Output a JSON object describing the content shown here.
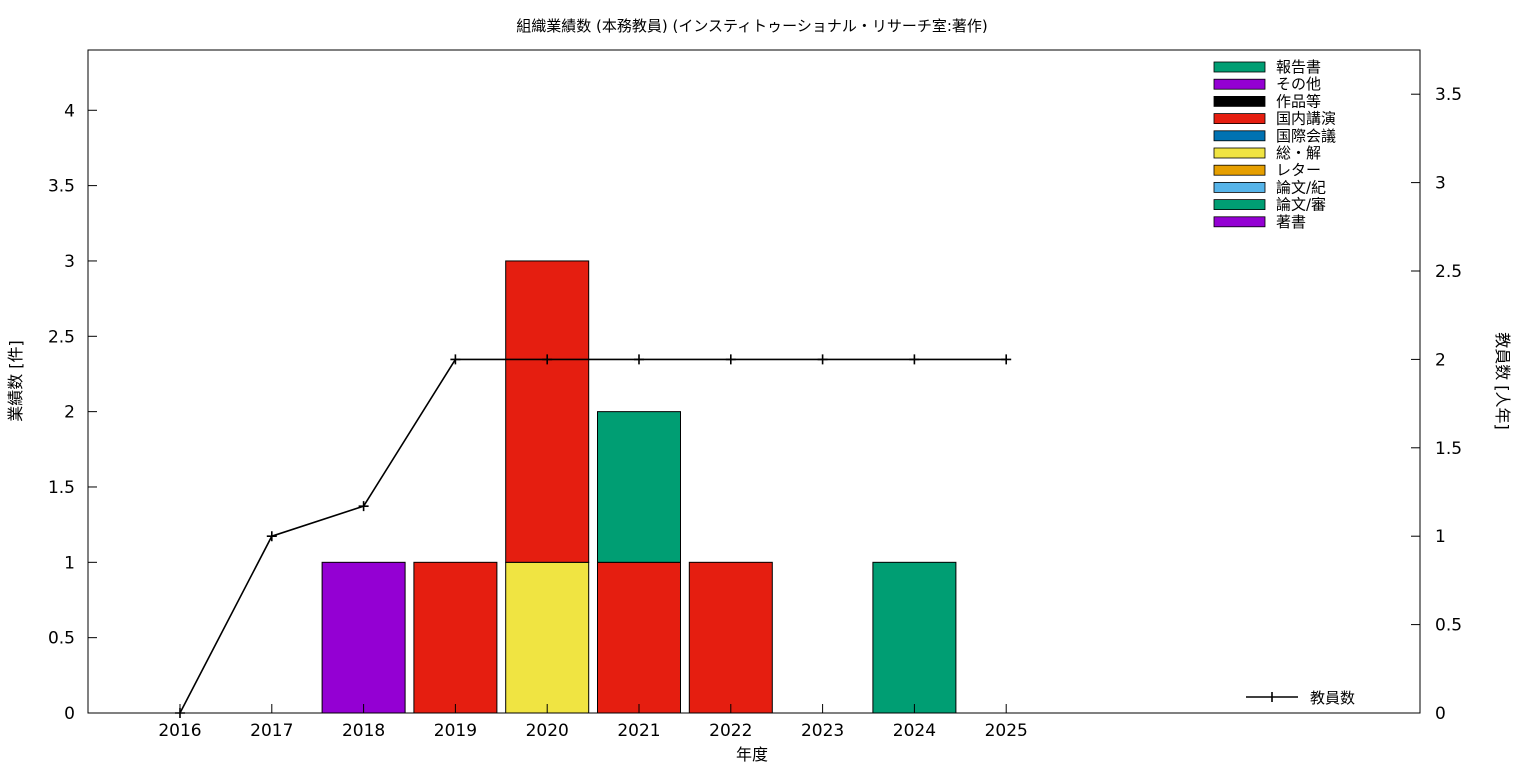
{
  "chart_data": {
    "type": "bar",
    "title": "組織業績数 (本務教員) (インスティトゥーショナル・リサーチ室:著作)",
    "xlabel": "年度",
    "ylabel": "業績数 [件]",
    "y2label": "教員数 [人年]",
    "categories": [
      "2016",
      "2017",
      "2018",
      "2019",
      "2020",
      "2021",
      "2022",
      "2023",
      "2024",
      "2025"
    ],
    "ylim": [
      0,
      4.4
    ],
    "yticks": [
      "0",
      "0.5",
      "1",
      "1.5",
      "2",
      "2.5",
      "3",
      "3.5",
      "4"
    ],
    "y2lim": [
      0,
      3.75
    ],
    "y2ticks": [
      "0",
      "0.5",
      "1",
      "1.5",
      "2",
      "2.5",
      "3",
      "3.5"
    ],
    "legend_position": "top-right",
    "stack_order": [
      "著書",
      "論文/審",
      "論文/紀",
      "レター",
      "総・解",
      "国際会議",
      "国内講演",
      "作品等",
      "その他",
      "報告書"
    ],
    "series": [
      {
        "name": "報告書",
        "color": "#009e73",
        "values": [
          0,
          0,
          0,
          0,
          0,
          1,
          0,
          0,
          1,
          0
        ]
      },
      {
        "name": "その他",
        "color": "#9400d3",
        "values": [
          0,
          0,
          0,
          0,
          0,
          0,
          0,
          0,
          0,
          0
        ]
      },
      {
        "name": "作品等",
        "color": "#000000",
        "values": [
          0,
          0,
          0,
          0,
          0,
          0,
          0,
          0,
          0,
          0
        ]
      },
      {
        "name": "国内講演",
        "color": "#e51e10",
        "values": [
          0,
          0,
          0,
          1,
          2,
          1,
          1,
          0,
          0,
          0
        ]
      },
      {
        "name": "国際会議",
        "color": "#0072b2",
        "values": [
          0,
          0,
          0,
          0,
          0,
          0,
          0,
          0,
          0,
          0
        ]
      },
      {
        "name": "総・解",
        "color": "#f0e442",
        "values": [
          0,
          0,
          0,
          0,
          1,
          0,
          0,
          0,
          0,
          0
        ]
      },
      {
        "name": "レター",
        "color": "#e69f00",
        "values": [
          0,
          0,
          0,
          0,
          0,
          0,
          0,
          0,
          0,
          0
        ]
      },
      {
        "name": "論文/紀",
        "color": "#56b4e9",
        "values": [
          0,
          0,
          0,
          0,
          0,
          0,
          0,
          0,
          0,
          0
        ]
      },
      {
        "name": "論文/審",
        "color": "#009e73",
        "values": [
          0,
          0,
          0,
          0,
          0,
          0,
          0,
          0,
          0,
          0
        ]
      },
      {
        "name": "著書",
        "color": "#9400d3",
        "values": [
          0,
          0,
          1,
          0,
          0,
          0,
          0,
          0,
          0,
          0
        ]
      }
    ],
    "line_series": {
      "name": "教員数",
      "axis": "y2",
      "color": "#000000",
      "values": [
        0,
        1,
        1.17,
        2,
        2,
        2,
        2,
        2,
        2,
        2
      ]
    }
  }
}
